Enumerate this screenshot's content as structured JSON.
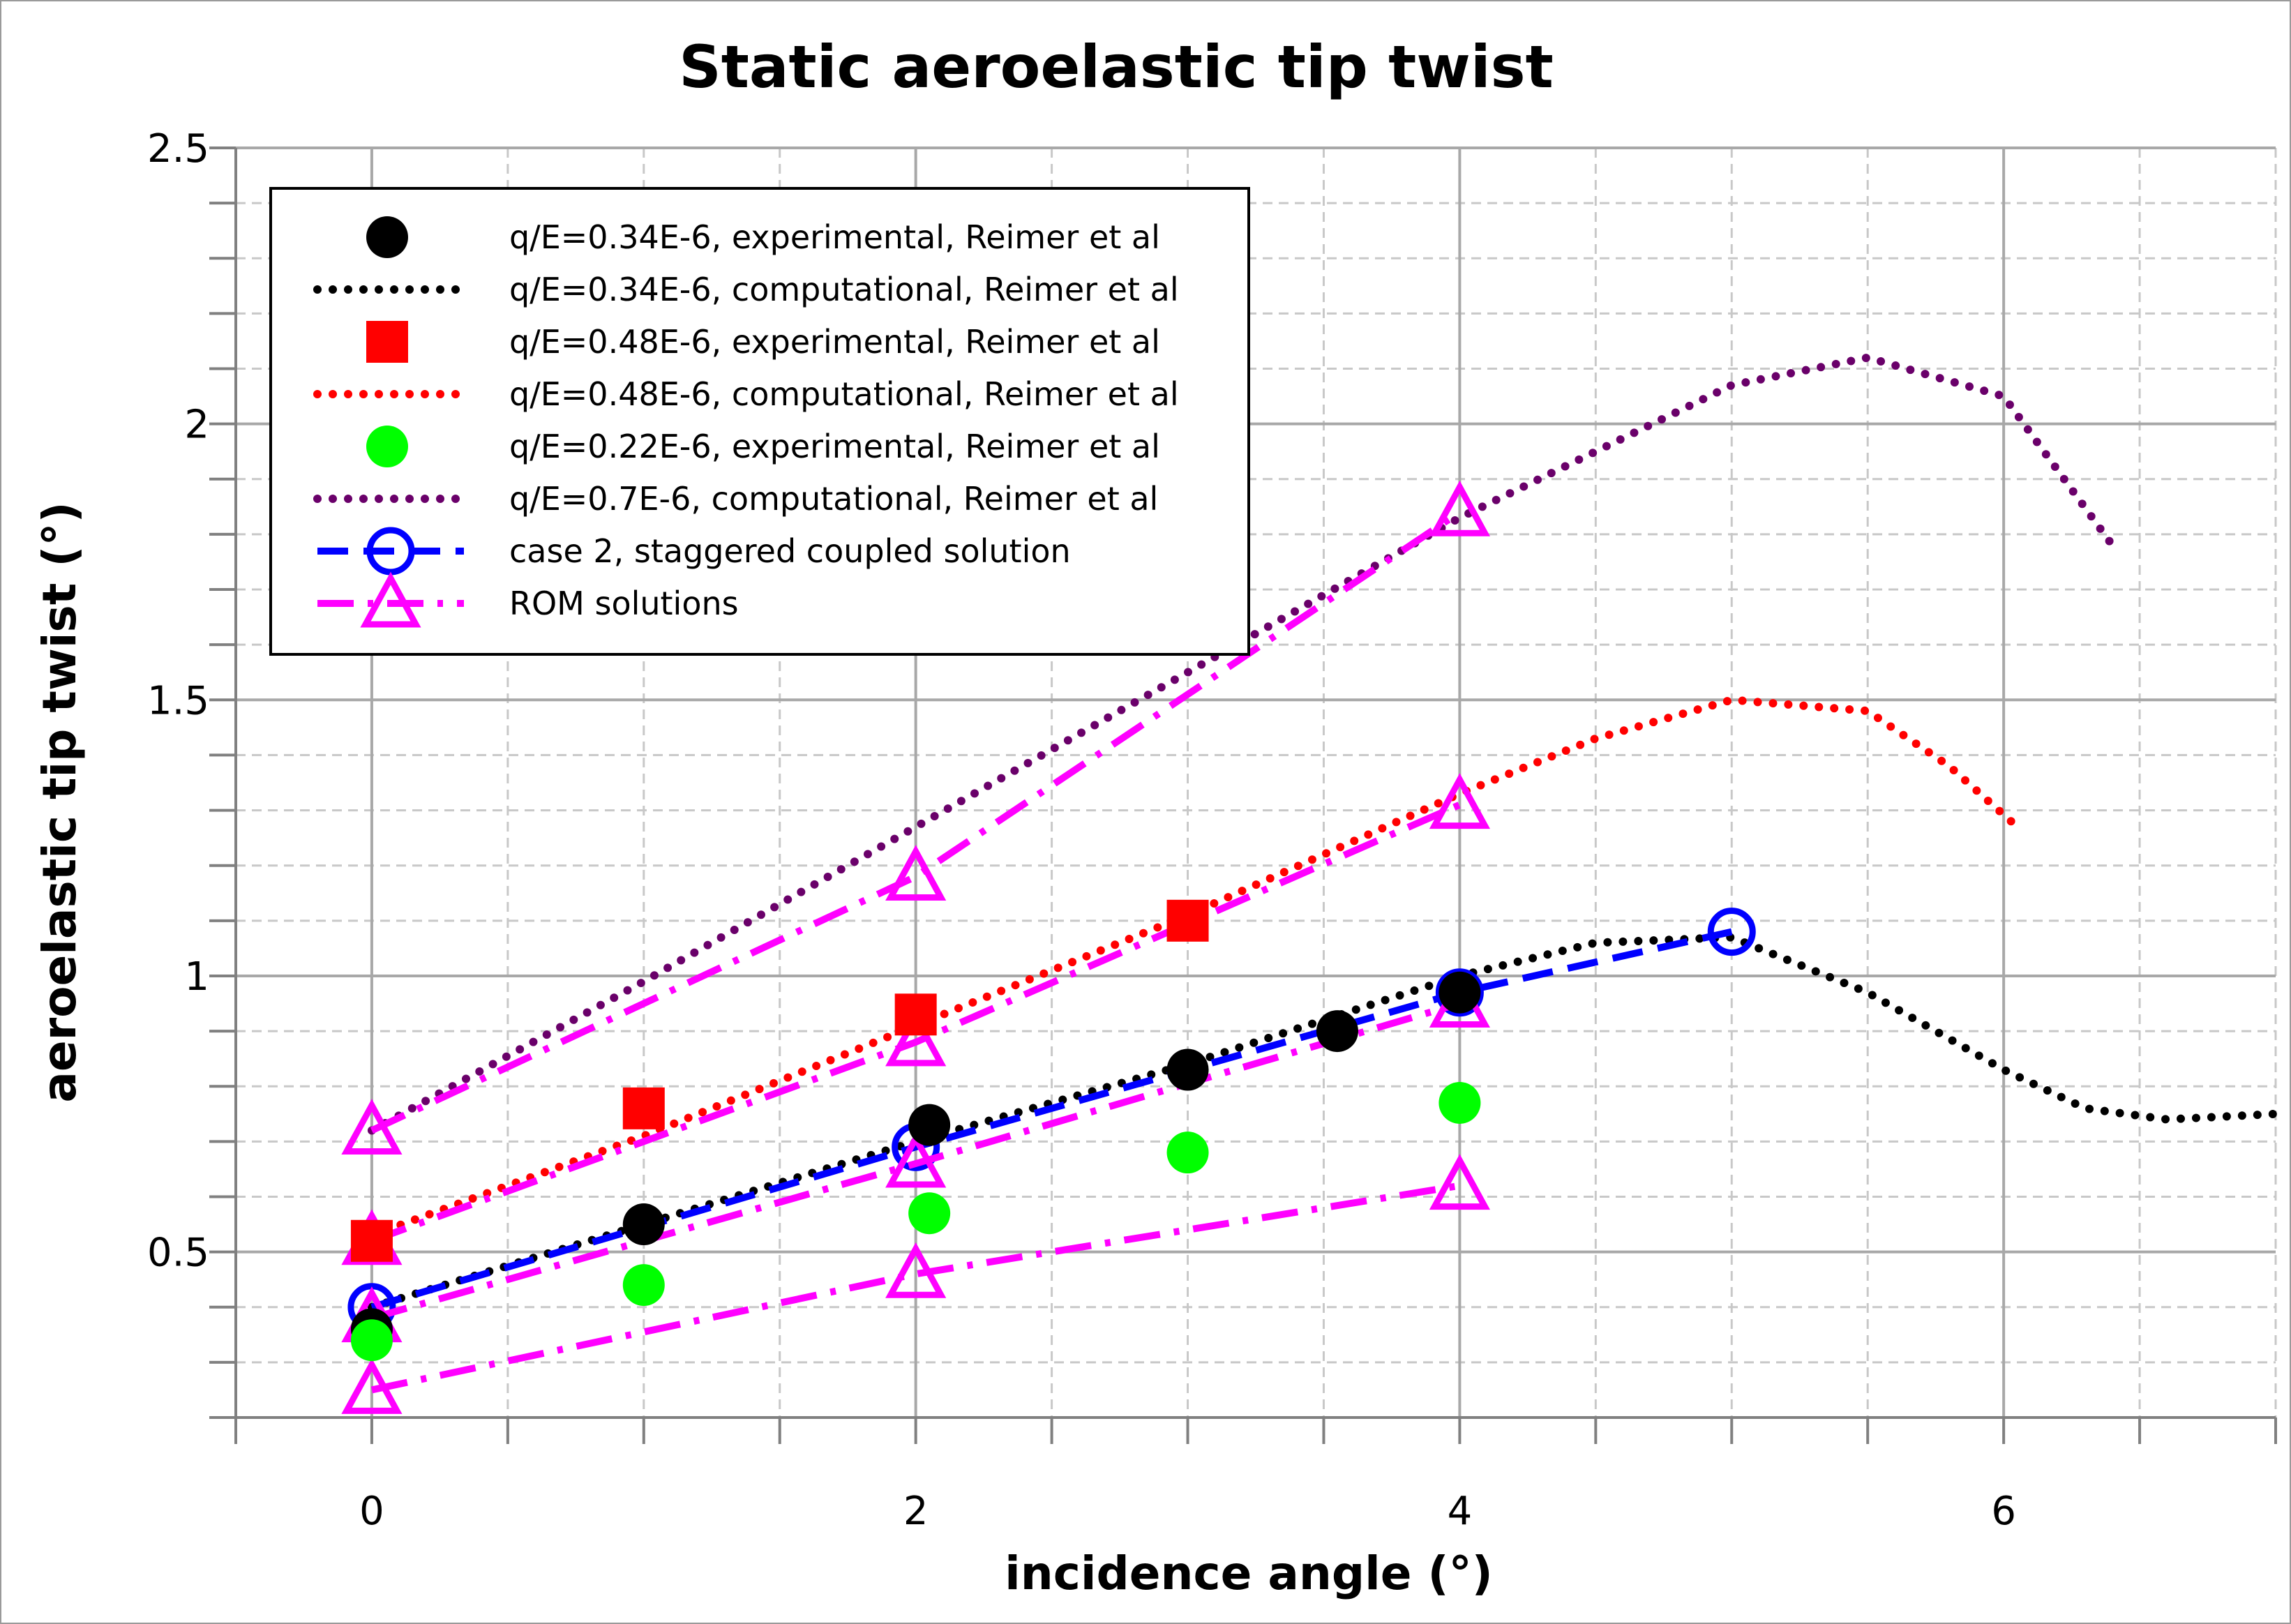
{
  "chart_data": {
    "type": "line",
    "title": "Static aeroelastic tip twist",
    "xlabel": "incidence angle (°)",
    "ylabel": "aeroelastic tip twist (°)",
    "xlim": [
      -0.5,
      7
    ],
    "ylim": [
      0.2,
      2.5
    ],
    "xticks": [
      0,
      2,
      4,
      6
    ],
    "yticks": [
      0.5,
      1,
      1.5,
      2,
      2.5
    ],
    "xtick_labels": [
      "0",
      "2",
      "4",
      "6"
    ],
    "ytick_labels": [
      "0.5",
      "1",
      "1.5",
      "2",
      "2.5"
    ],
    "grid": true,
    "legend_position": "top-left",
    "series": [
      {
        "name": "q/E=0.34E-6, experimental, Reimer et al",
        "kind": "marker",
        "marker": "circle",
        "color": "#000000",
        "x": [
          0,
          1,
          2.05,
          3,
          3.55,
          4
        ],
        "y": [
          0.36,
          0.55,
          0.73,
          0.83,
          0.9,
          0.97
        ]
      },
      {
        "name": "q/E=0.34E-6, computational, Reimer et al",
        "kind": "line",
        "dash": "dotted",
        "color": "#000000",
        "x": [
          0,
          1,
          2,
          3,
          4,
          4.5,
          5,
          5.5,
          6,
          6.3,
          6.6,
          7
        ],
        "y": [
          0.4,
          0.55,
          0.7,
          0.84,
          1.0,
          1.06,
          1.07,
          0.97,
          0.83,
          0.76,
          0.74,
          0.75
        ]
      },
      {
        "name": "q/E=0.48E-6, experimental, Reimer et al",
        "kind": "marker",
        "marker": "square",
        "color": "#ff0000",
        "x": [
          0,
          1,
          2,
          3
        ],
        "y": [
          0.52,
          0.76,
          0.93,
          1.1
        ]
      },
      {
        "name": "q/E=0.48E-6, computational, Reimer et al",
        "kind": "line",
        "dash": "dotted",
        "color": "#ff0000",
        "x": [
          0,
          1,
          2,
          3,
          4,
          4.5,
          5,
          5.5,
          5.8,
          6.05
        ],
        "y": [
          0.53,
          0.71,
          0.91,
          1.11,
          1.33,
          1.43,
          1.5,
          1.48,
          1.38,
          1.27
        ]
      },
      {
        "name": "q/E=0.22E-6, experimental, Reimer et al",
        "kind": "marker",
        "marker": "circle",
        "color": "#00ff00",
        "x": [
          0,
          1,
          2.05,
          3,
          4
        ],
        "y": [
          0.34,
          0.44,
          0.57,
          0.68,
          0.77
        ]
      },
      {
        "name": "q/E=0.7E-6, computational, Reimer et al",
        "kind": "line",
        "dash": "dotted",
        "color": "#6a006a",
        "x": [
          0,
          1,
          2,
          3,
          4,
          4.5,
          5,
          5.5,
          6,
          6.4
        ],
        "y": [
          0.72,
          0.99,
          1.27,
          1.55,
          1.83,
          1.95,
          2.07,
          2.12,
          2.05,
          1.78
        ]
      },
      {
        "name": "case 2, staggered coupled solution",
        "kind": "line+marker",
        "dash": "dashed",
        "marker": "open-circle",
        "color": "#0000ff",
        "x": [
          0,
          2,
          4,
          5
        ],
        "y": [
          0.4,
          0.69,
          0.97,
          1.08
        ]
      },
      {
        "name": "ROM solutions",
        "kind": "line+marker",
        "dash": "dash-dot",
        "marker": "open-triangle",
        "color": "#ff00ff",
        "groups": [
          {
            "x": [
              0,
              2,
              4
            ],
            "y": [
              0.72,
              1.18,
              1.84
            ]
          },
          {
            "x": [
              0,
              2,
              4
            ],
            "y": [
              0.52,
              0.88,
              1.31
            ]
          },
          {
            "x": [
              0,
              2,
              4
            ],
            "y": [
              0.38,
              0.66,
              0.95
            ]
          },
          {
            "x": [
              0,
              2,
              4
            ],
            "y": [
              0.25,
              0.46,
              0.62
            ]
          }
        ]
      }
    ]
  }
}
